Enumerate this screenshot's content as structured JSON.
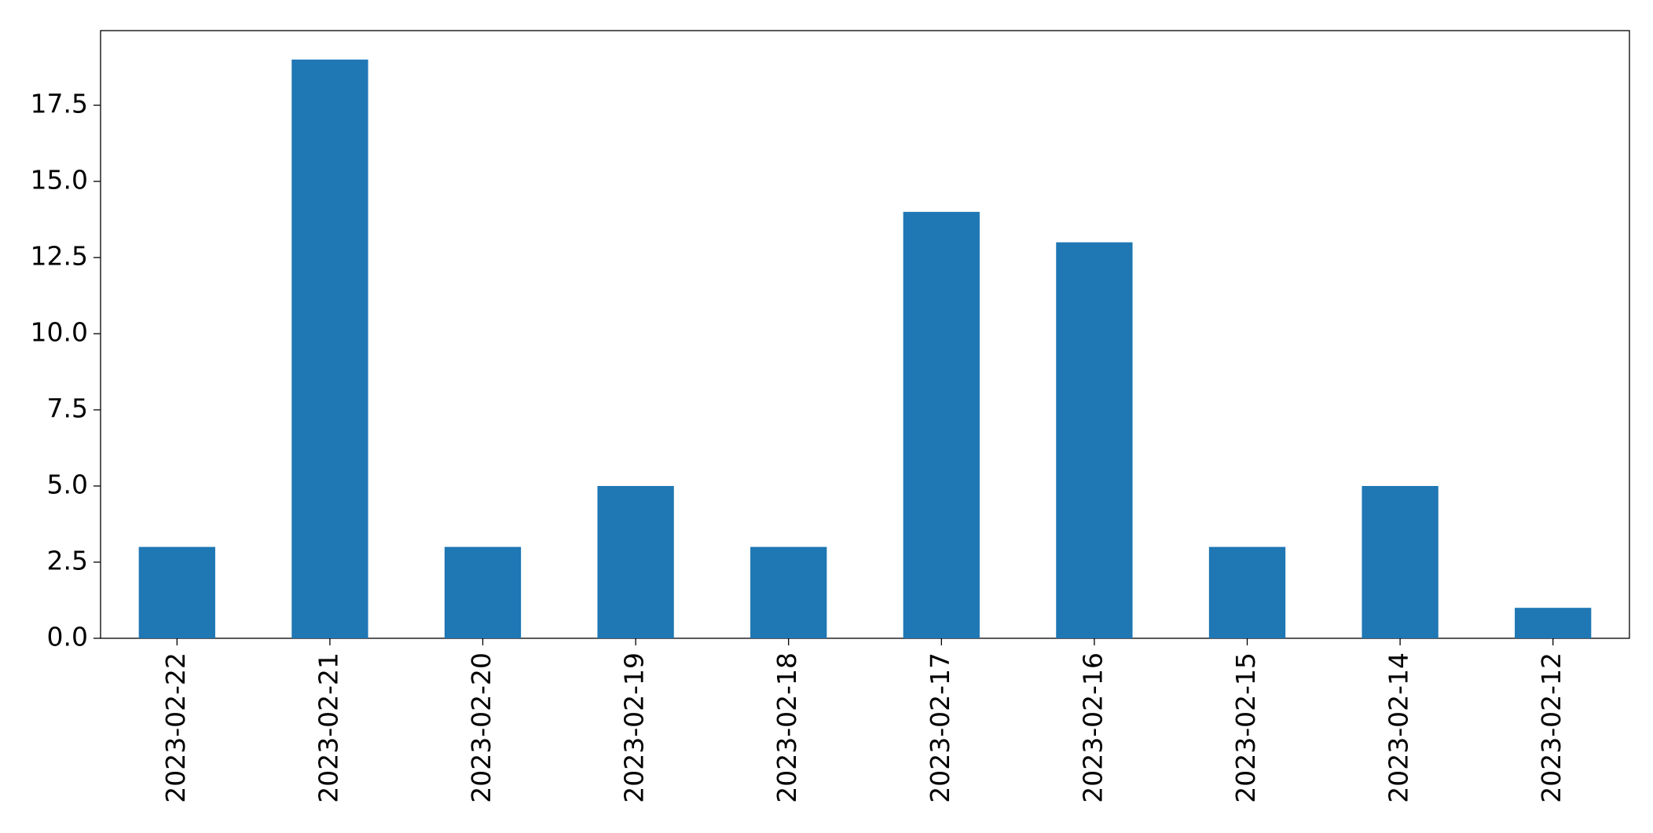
{
  "chart_data": {
    "type": "bar",
    "categories": [
      "2023-02-22",
      "2023-02-21",
      "2023-02-20",
      "2023-02-19",
      "2023-02-18",
      "2023-02-17",
      "2023-02-16",
      "2023-02-15",
      "2023-02-14",
      "2023-02-12"
    ],
    "values": [
      3,
      19,
      3,
      5,
      3,
      14,
      13,
      3,
      5,
      1
    ],
    "color": "#1f77b4",
    "ylim": [
      0,
      19.95
    ],
    "yticks": [
      {
        "value": 0,
        "label": "0.0"
      },
      2.5,
      {
        "value": 5,
        "label": "5.0"
      },
      7.5,
      {
        "value": 10,
        "label": "10.0"
      },
      12.5,
      {
        "value": 15,
        "label": "15.0"
      },
      17.5
    ],
    "grid": false
  }
}
